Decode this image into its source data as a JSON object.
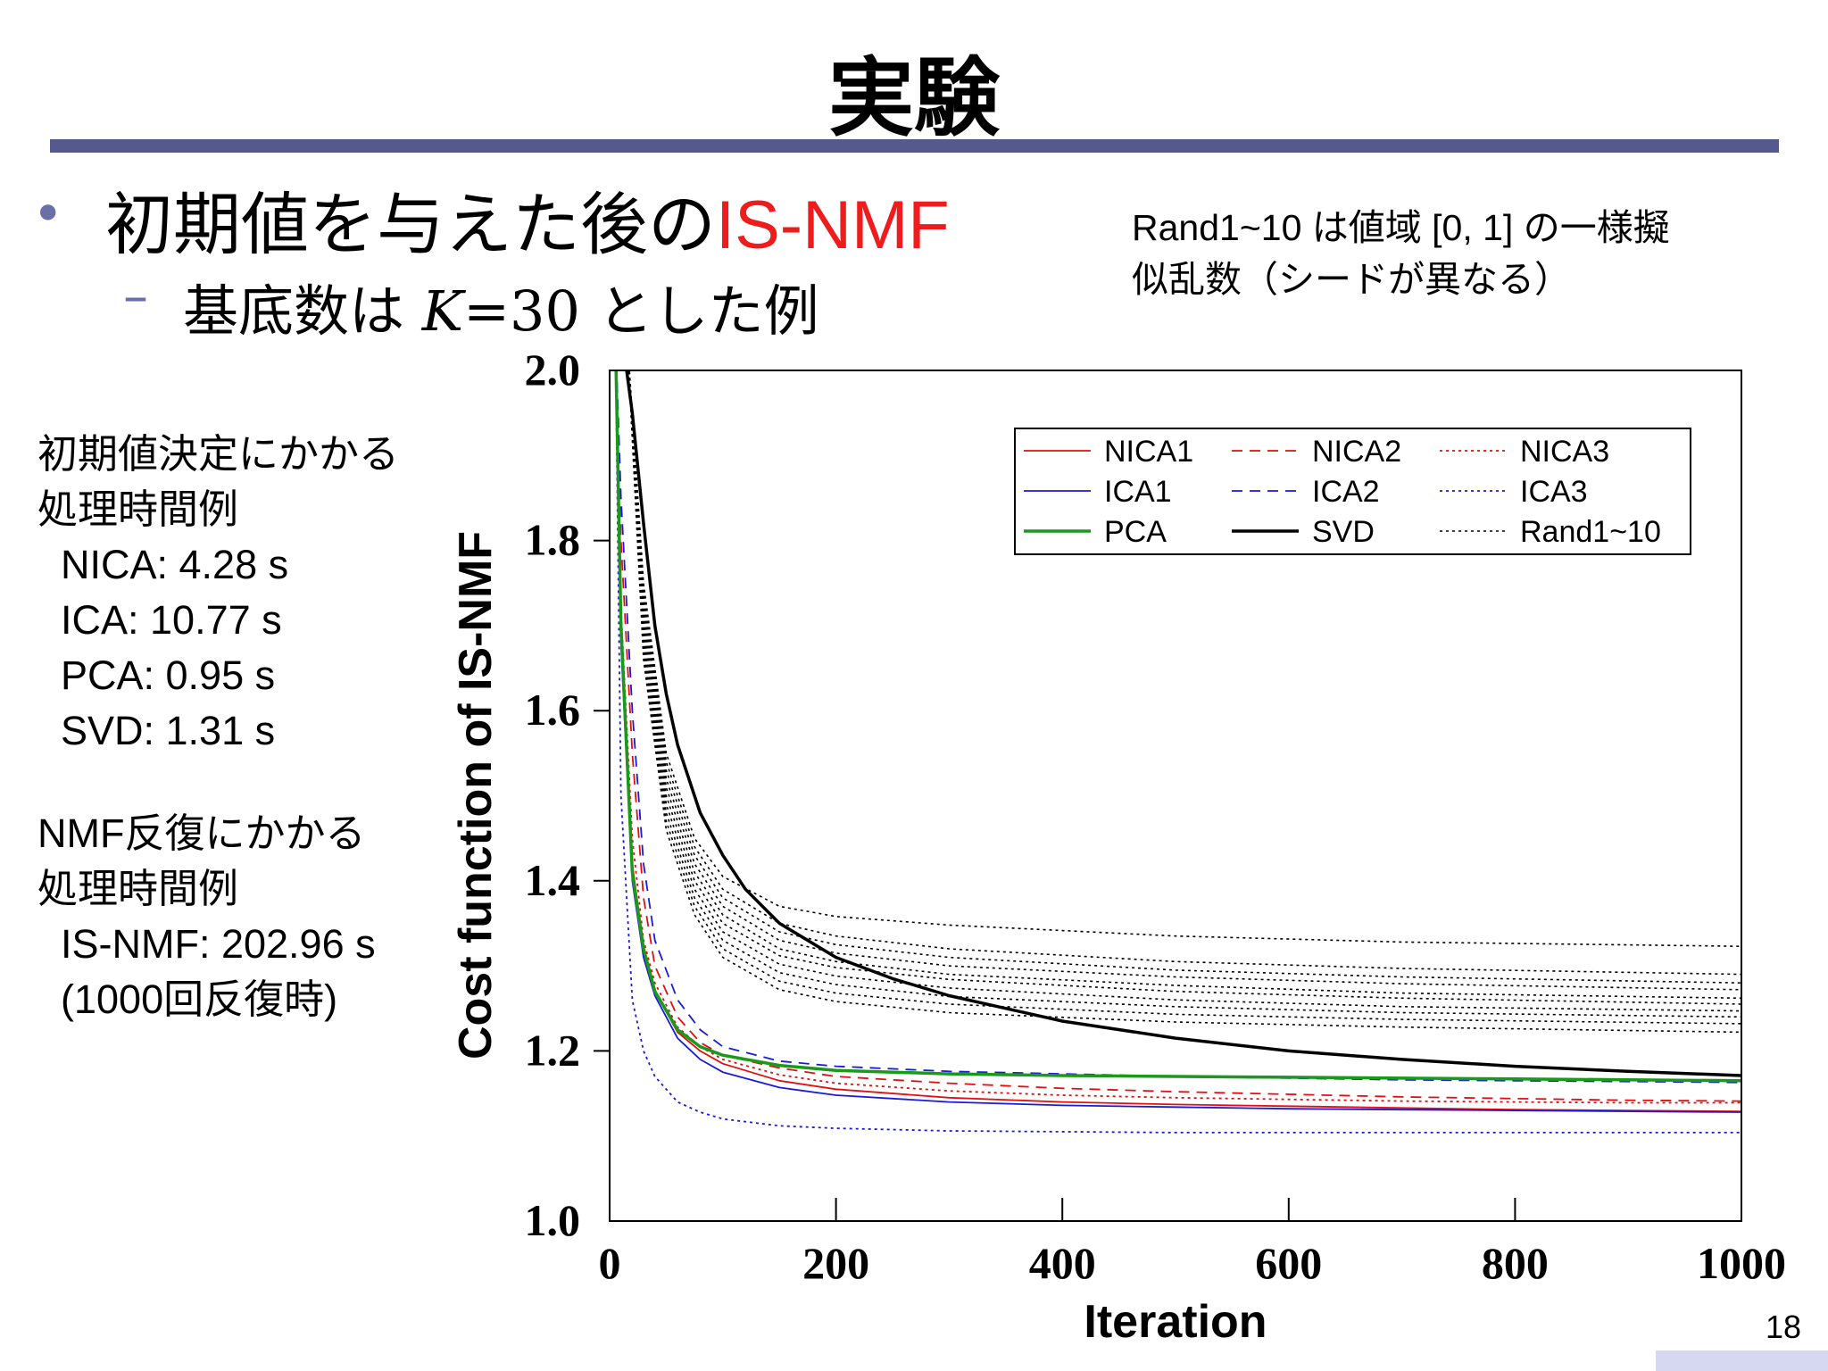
{
  "slide": {
    "title": "実験",
    "bullet_prefix": "初期値を与えた後の",
    "bullet_accent": "IS-NMF",
    "sub_prefix": "基底数は",
    "sub_var": "K",
    "sub_eq": "=",
    "sub_num": "30",
    "sub_suffix": "とした例",
    "note_line1": "Rand1~10 は値域 [0, 1] の一様擬",
    "note_line2": "似乱数（シードが異なる）",
    "side_init": [
      "初期値決定にかかる",
      "処理時間例",
      "NICA: 4.28 s",
      "ICA: 10.77 s",
      "PCA: 0.95 s",
      "SVD: 1.31 s"
    ],
    "side_nmf": [
      "NMF反復にかかる",
      "処理時間例",
      "IS-NMF: 202.96 s",
      "(1000回反復時)"
    ],
    "page_number": "18",
    "accent_color": "#ee1c1c",
    "rule_color": "#55598c"
  },
  "chart_data": {
    "type": "line",
    "xlabel": "Iteration",
    "ylabel": "Cost function of IS-NMF",
    "xlim": [
      0,
      1000
    ],
    "ylim": [
      1.0,
      2.0
    ],
    "xticks": [
      0,
      200,
      400,
      600,
      800,
      1000
    ],
    "yticks": [
      1.0,
      1.2,
      1.4,
      1.6,
      1.8,
      2.0
    ],
    "xtick_labels": [
      "0",
      "200",
      "400",
      "600",
      "800",
      "1000"
    ],
    "ytick_labels": [
      "1.0",
      "1.2",
      "1.4",
      "1.6",
      "1.8",
      "2.0"
    ],
    "grid": false,
    "legend_position": "top-right",
    "legend_columns": 3,
    "series": [
      {
        "name": "NICA1",
        "color": "#e01010",
        "dash": "solid",
        "width": 1.8,
        "legend": true,
        "x": [
          5,
          10,
          20,
          30,
          40,
          60,
          80,
          100,
          150,
          200,
          300,
          400,
          500,
          600,
          700,
          800,
          900,
          1000
        ],
        "y": [
          2.05,
          1.7,
          1.42,
          1.32,
          1.27,
          1.222,
          1.2,
          1.185,
          1.165,
          1.155,
          1.145,
          1.14,
          1.137,
          1.135,
          1.133,
          1.131,
          1.13,
          1.129
        ]
      },
      {
        "name": "NICA2",
        "color": "#e01010",
        "dash": "dashed",
        "width": 1.8,
        "legend": true,
        "x": [
          5,
          10,
          20,
          30,
          40,
          60,
          80,
          100,
          150,
          200,
          300,
          400,
          500,
          600,
          700,
          800,
          900,
          1000
        ],
        "y": [
          2.05,
          1.8,
          1.55,
          1.38,
          1.3,
          1.24,
          1.21,
          1.195,
          1.18,
          1.17,
          1.162,
          1.156,
          1.152,
          1.149,
          1.146,
          1.144,
          1.142,
          1.141
        ]
      },
      {
        "name": "NICA3",
        "color": "#e01010",
        "dash": "dotted",
        "width": 1.8,
        "legend": true,
        "x": [
          5,
          10,
          20,
          30,
          40,
          60,
          80,
          100,
          150,
          200,
          300,
          400,
          500,
          600,
          700,
          800,
          900,
          1000
        ],
        "y": [
          2.05,
          1.72,
          1.45,
          1.33,
          1.28,
          1.228,
          1.205,
          1.19,
          1.172,
          1.162,
          1.153,
          1.148,
          1.145,
          1.143,
          1.141,
          1.14,
          1.139,
          1.139
        ]
      },
      {
        "name": "ICA1",
        "color": "#1a1adc",
        "dash": "solid",
        "width": 1.8,
        "legend": true,
        "x": [
          5,
          10,
          20,
          30,
          40,
          60,
          80,
          100,
          150,
          200,
          300,
          400,
          500,
          600,
          700,
          800,
          900,
          1000
        ],
        "y": [
          2.05,
          1.68,
          1.4,
          1.31,
          1.265,
          1.215,
          1.19,
          1.175,
          1.157,
          1.148,
          1.14,
          1.136,
          1.134,
          1.132,
          1.131,
          1.13,
          1.129,
          1.128
        ]
      },
      {
        "name": "ICA2",
        "color": "#1a1adc",
        "dash": "dashed",
        "width": 1.8,
        "legend": true,
        "x": [
          5,
          10,
          20,
          30,
          40,
          60,
          80,
          100,
          150,
          200,
          300,
          400,
          500,
          600,
          700,
          800,
          900,
          1000
        ],
        "y": [
          2.05,
          1.85,
          1.6,
          1.42,
          1.33,
          1.26,
          1.225,
          1.205,
          1.188,
          1.182,
          1.176,
          1.173,
          1.17,
          1.168,
          1.166,
          1.165,
          1.164,
          1.163
        ]
      },
      {
        "name": "ICA3",
        "color": "#1a1adc",
        "dash": "dotted",
        "width": 1.8,
        "legend": true,
        "x": [
          5,
          10,
          20,
          30,
          40,
          60,
          80,
          100,
          150,
          200,
          300,
          400,
          500,
          600,
          700,
          800,
          900,
          1000
        ],
        "y": [
          2.05,
          1.5,
          1.26,
          1.2,
          1.17,
          1.14,
          1.128,
          1.12,
          1.112,
          1.109,
          1.106,
          1.105,
          1.104,
          1.104,
          1.104,
          1.104,
          1.104,
          1.104
        ]
      },
      {
        "name": "PCA",
        "color": "#1a9a1a",
        "dash": "solid",
        "width": 3.5,
        "legend": true,
        "x": [
          5,
          10,
          20,
          30,
          40,
          60,
          80,
          100,
          150,
          200,
          300,
          400,
          500,
          600,
          700,
          800,
          900,
          1000
        ],
        "y": [
          2.05,
          1.7,
          1.41,
          1.32,
          1.27,
          1.225,
          1.205,
          1.195,
          1.183,
          1.177,
          1.173,
          1.171,
          1.17,
          1.169,
          1.168,
          1.167,
          1.166,
          1.165
        ]
      },
      {
        "name": "SVD",
        "color": "#000000",
        "dash": "solid",
        "width": 3.5,
        "legend": true,
        "x": [
          10,
          20,
          30,
          40,
          50,
          60,
          80,
          100,
          120,
          150,
          200,
          250,
          300,
          400,
          500,
          600,
          700,
          800,
          900,
          1000
        ],
        "y": [
          2.05,
          1.95,
          1.82,
          1.7,
          1.62,
          1.56,
          1.48,
          1.43,
          1.39,
          1.35,
          1.31,
          1.285,
          1.265,
          1.235,
          1.215,
          1.2,
          1.19,
          1.182,
          1.176,
          1.171
        ]
      },
      {
        "name": "Rand1~10",
        "color": "#000000",
        "dash": "dotted",
        "width": 1.6,
        "legend": true,
        "x": [
          15,
          30,
          50,
          75,
          100,
          150,
          200,
          300,
          500,
          700,
          1000
        ],
        "y": [
          2.05,
          1.75,
          1.55,
          1.45,
          1.405,
          1.37,
          1.358,
          1.348,
          1.335,
          1.328,
          1.323
        ]
      },
      {
        "name": "",
        "color": "#000000",
        "dash": "dotted",
        "width": 1.6,
        "legend": false,
        "x": [
          15,
          30,
          50,
          75,
          100,
          150,
          200,
          300,
          500,
          700,
          1000
        ],
        "y": [
          2.05,
          1.74,
          1.54,
          1.44,
          1.39,
          1.35,
          1.335,
          1.32,
          1.305,
          1.297,
          1.29
        ]
      },
      {
        "name": "",
        "color": "#000000",
        "dash": "dotted",
        "width": 1.6,
        "legend": false,
        "x": [
          15,
          30,
          50,
          75,
          100,
          150,
          200,
          300,
          500,
          700,
          1000
        ],
        "y": [
          2.05,
          1.73,
          1.53,
          1.43,
          1.38,
          1.34,
          1.325,
          1.31,
          1.295,
          1.287,
          1.28
        ]
      },
      {
        "name": "",
        "color": "#000000",
        "dash": "dotted",
        "width": 1.6,
        "legend": false,
        "x": [
          15,
          30,
          50,
          75,
          100,
          150,
          200,
          300,
          500,
          700,
          1000
        ],
        "y": [
          2.05,
          1.72,
          1.52,
          1.42,
          1.37,
          1.33,
          1.315,
          1.3,
          1.287,
          1.279,
          1.272
        ]
      },
      {
        "name": "",
        "color": "#000000",
        "dash": "dotted",
        "width": 1.6,
        "legend": false,
        "x": [
          15,
          30,
          50,
          75,
          100,
          150,
          200,
          300,
          500,
          700,
          1000
        ],
        "y": [
          2.05,
          1.71,
          1.51,
          1.41,
          1.36,
          1.32,
          1.305,
          1.29,
          1.277,
          1.268,
          1.262
        ]
      },
      {
        "name": "",
        "color": "#000000",
        "dash": "dotted",
        "width": 1.6,
        "legend": false,
        "x": [
          15,
          30,
          50,
          75,
          100,
          150,
          200,
          300,
          500,
          700,
          1000
        ],
        "y": [
          2.05,
          1.7,
          1.5,
          1.4,
          1.35,
          1.312,
          1.298,
          1.284,
          1.27,
          1.262,
          1.255
        ]
      },
      {
        "name": "",
        "color": "#000000",
        "dash": "dotted",
        "width": 1.6,
        "legend": false,
        "x": [
          15,
          30,
          50,
          75,
          100,
          150,
          200,
          300,
          500,
          700,
          1000
        ],
        "y": [
          2.05,
          1.69,
          1.49,
          1.39,
          1.34,
          1.302,
          1.288,
          1.274,
          1.26,
          1.252,
          1.247
        ]
      },
      {
        "name": "",
        "color": "#000000",
        "dash": "dotted",
        "width": 1.6,
        "legend": false,
        "x": [
          15,
          30,
          50,
          75,
          100,
          150,
          200,
          300,
          500,
          700,
          1000
        ],
        "y": [
          2.05,
          1.68,
          1.48,
          1.38,
          1.33,
          1.292,
          1.278,
          1.264,
          1.252,
          1.245,
          1.24
        ]
      },
      {
        "name": "",
        "color": "#000000",
        "dash": "dotted",
        "width": 1.6,
        "legend": false,
        "x": [
          15,
          30,
          50,
          75,
          100,
          150,
          200,
          300,
          500,
          700,
          1000
        ],
        "y": [
          2.05,
          1.67,
          1.47,
          1.37,
          1.32,
          1.282,
          1.268,
          1.255,
          1.243,
          1.237,
          1.232
        ]
      },
      {
        "name": "",
        "color": "#000000",
        "dash": "dotted",
        "width": 1.6,
        "legend": false,
        "x": [
          15,
          30,
          50,
          75,
          100,
          150,
          200,
          300,
          500,
          700,
          1000
        ],
        "y": [
          2.05,
          1.66,
          1.46,
          1.36,
          1.31,
          1.272,
          1.258,
          1.245,
          1.234,
          1.228,
          1.222
        ]
      }
    ]
  }
}
